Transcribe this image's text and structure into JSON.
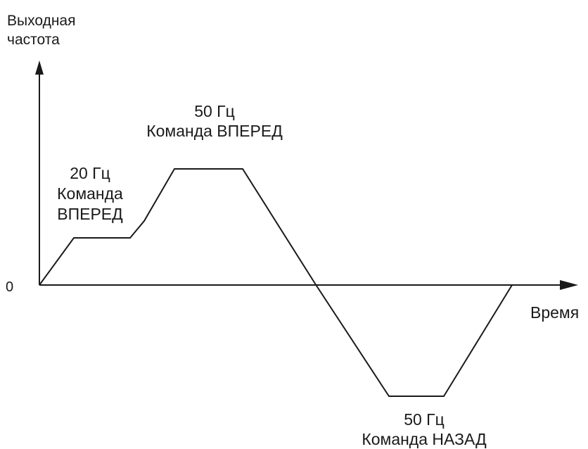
{
  "y_axis_label": [
    "Выходная",
    "частота"
  ],
  "x_axis_label": "Время",
  "zero_label": "0",
  "segments": {
    "forward_20": [
      "20 Гц",
      "Команда",
      "ВПЕРЕД"
    ],
    "forward_50": [
      "50 Гц",
      "Команда ВПЕРЕД"
    ],
    "reverse_50": [
      "50 Гц",
      "Команда НАЗАД"
    ]
  },
  "colors": {
    "line": "#1a1a1a",
    "background": "#ffffff"
  }
}
